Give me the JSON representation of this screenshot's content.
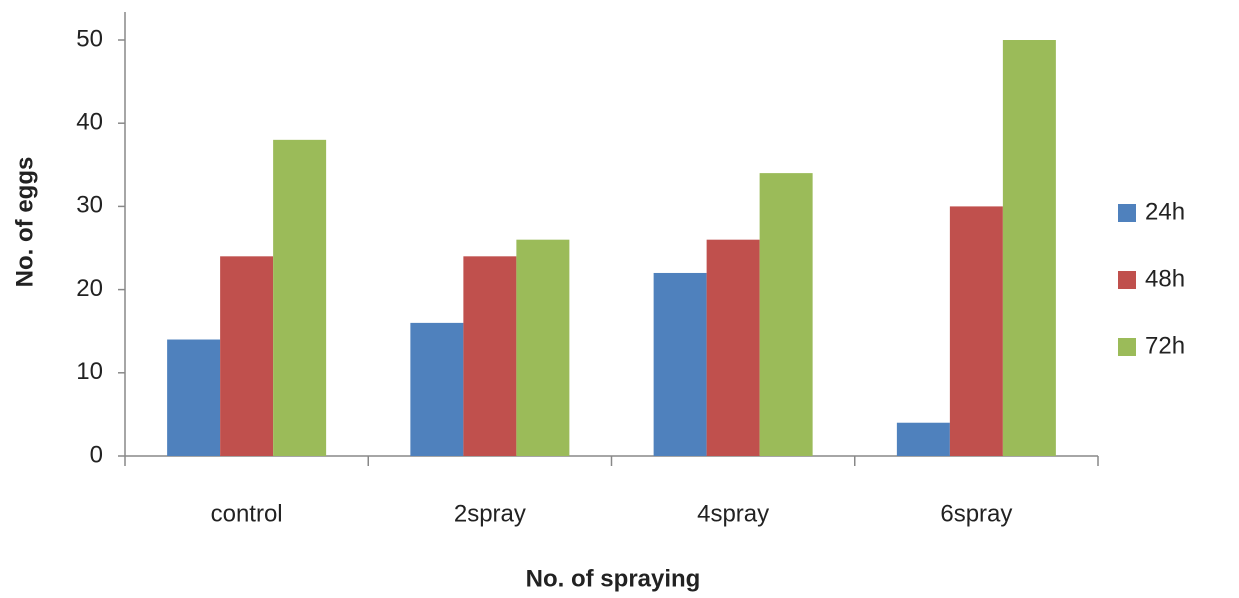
{
  "chart_data": {
    "type": "bar",
    "x_label": "No. of spraying",
    "y_label": "No. of eggs",
    "categories": [
      "control",
      "2spray",
      "4spray",
      "6spray"
    ],
    "series": [
      {
        "name": "24h",
        "color": "#4f81bd",
        "values": [
          14,
          16,
          22,
          4
        ]
      },
      {
        "name": "48h",
        "color": "#c0504d",
        "values": [
          24,
          24,
          26,
          30
        ]
      },
      {
        "name": "72h",
        "color": "#9bbb59",
        "values": [
          38,
          26,
          34,
          50
        ]
      }
    ],
    "ylim": [
      0,
      50
    ],
    "yticks": [
      0,
      10,
      20,
      30,
      40,
      50
    ],
    "grid": false,
    "legend": "right"
  }
}
